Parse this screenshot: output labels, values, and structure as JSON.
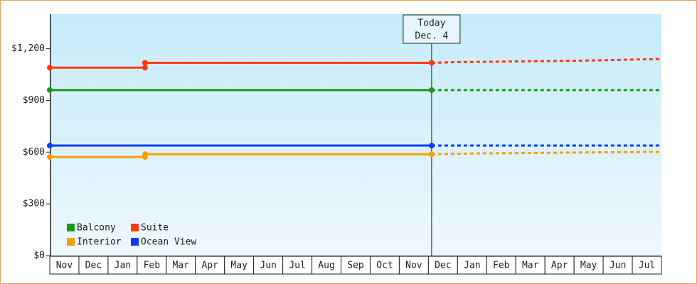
{
  "chart_data": {
    "type": "line",
    "categories": [
      "Nov",
      "Dec",
      "Jan",
      "Feb",
      "Mar",
      "Apr",
      "May",
      "Jun",
      "Jul",
      "Aug",
      "Sep",
      "Oct",
      "Nov",
      "Dec",
      "Jan",
      "Feb",
      "Mar",
      "Apr",
      "May",
      "Jun",
      "Jul"
    ],
    "xlim": [
      0,
      21
    ],
    "ylim": [
      0,
      1400
    ],
    "yticks": [
      {
        "value": 0,
        "label": "$0"
      },
      {
        "value": 300,
        "label": "$300"
      },
      {
        "value": 600,
        "label": "$600"
      },
      {
        "value": 900,
        "label": "$900"
      },
      {
        "value": 1200,
        "label": "$1,200"
      }
    ],
    "legend": "lower left",
    "today": {
      "x": 13.11,
      "label": [
        "Today",
        "Dec. 4"
      ]
    },
    "series": [
      {
        "name": "Balcony",
        "color": "#1a9a1a",
        "x": [
          0,
          13.11
        ],
        "values": [
          960,
          960
        ],
        "projection": {
          "x": [
            13.11,
            21
          ],
          "values": [
            960,
            960
          ]
        }
      },
      {
        "name": "Suite",
        "color": "#ff3a0a",
        "x": [
          0,
          3.27,
          3.27,
          13.11
        ],
        "values": [
          1090,
          1090,
          1118,
          1118
        ],
        "projection": {
          "x": [
            13.11,
            13.9,
            15.5,
            17.0,
            18.7,
            20.3,
            21
          ],
          "values": [
            1118,
            1122,
            1125,
            1128,
            1132,
            1138,
            1140
          ]
        }
      },
      {
        "name": "Interior",
        "color": "#f5a000",
        "x": [
          0,
          3.27,
          3.27,
          13.11
        ],
        "values": [
          572,
          572,
          588,
          588
        ],
        "projection": {
          "x": [
            13.11,
            14.4,
            17.0,
            19.5,
            21
          ],
          "values": [
            588,
            592,
            596,
            600,
            602
          ]
        }
      },
      {
        "name": "Ocean View",
        "color": "#0a3cff",
        "x": [
          0,
          13.11
        ],
        "values": [
          638,
          638
        ],
        "projection": {
          "x": [
            13.11,
            21
          ],
          "values": [
            638,
            638
          ]
        }
      }
    ]
  }
}
